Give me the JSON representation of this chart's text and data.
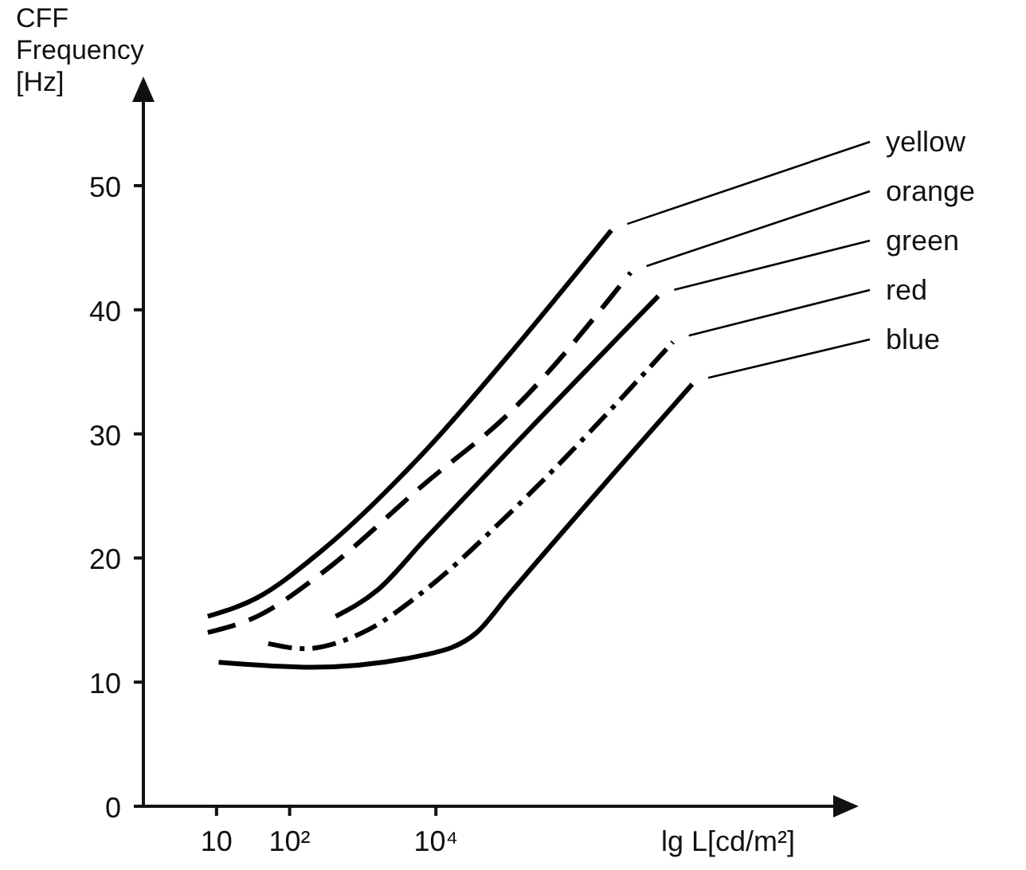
{
  "chart_data": {
    "type": "line",
    "ylabel": "CFF Frequency [Hz]",
    "xlabel": "lg L[cd/m²]",
    "log": "x",
    "xlim": [
      1,
      3000000000
    ],
    "xticks": [
      10,
      {
        "value": 100,
        "label": "10²"
      },
      {
        "value": 10000,
        "label": "10⁴"
      }
    ],
    "ylim": [
      0,
      57
    ],
    "yticks": [
      0,
      10,
      20,
      30,
      40,
      50
    ],
    "grid": false,
    "marker": "none",
    "series": [
      {
        "name": "yellow",
        "color": "#000000",
        "line_style": "solid",
        "x": [
          7.6,
          36,
          263,
          7080,
          97700,
          2500000
        ],
        "values": [
          15.3,
          16.8,
          20.5,
          28.6,
          36.3,
          46.4
        ]
      },
      {
        "name": "orange",
        "color": "#000000",
        "line_style": "dashed",
        "x": [
          7.6,
          36,
          263,
          7080,
          97700,
          4600000
        ],
        "values": [
          14.0,
          15.3,
          18.7,
          26.0,
          31.6,
          43.0
        ]
      },
      {
        "name": "green",
        "color": "#000000",
        "line_style": "solid",
        "x": [
          427,
          1580,
          7080,
          97700,
          11000000
        ],
        "values": [
          15.3,
          17.4,
          21.5,
          28.6,
          41.1
        ]
      },
      {
        "name": "red",
        "color": "#000000",
        "line_style": "dashdot",
        "x": [
          51,
          158,
          1000,
          7080,
          97700,
          17400000
        ],
        "values": [
          13.1,
          12.7,
          14.0,
          17.4,
          23.5,
          37.4
        ]
      },
      {
        "name": "blue",
        "color": "#000000",
        "line_style": "solid",
        "x": [
          10.7,
          204,
          7080,
          36300,
          97700,
          32000000
        ],
        "values": [
          11.6,
          11.2,
          12.2,
          14.0,
          17.0,
          34.0
        ]
      }
    ]
  }
}
